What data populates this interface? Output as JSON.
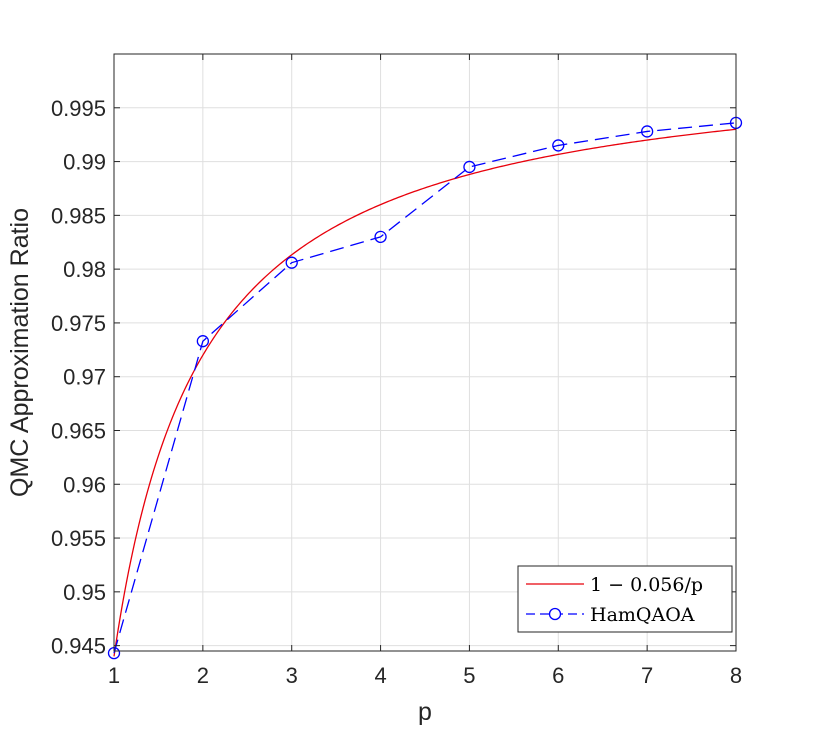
{
  "chart_data": {
    "type": "line",
    "xlabel": "p",
    "ylabel": "QMC Approximation Ratio",
    "xlim": [
      1,
      8
    ],
    "ylim": [
      0.9445,
      1.0
    ],
    "xticks": [
      1,
      2,
      3,
      4,
      5,
      6,
      7,
      8
    ],
    "yticks": [
      0.945,
      0.95,
      0.955,
      0.96,
      0.965,
      0.97,
      0.975,
      0.98,
      0.985,
      0.99,
      0.995
    ],
    "ytick_labels": [
      "0.945",
      "0.95",
      "0.955",
      "0.96",
      "0.965",
      "0.97",
      "0.975",
      "0.98",
      "0.985",
      "0.99",
      "0.995"
    ],
    "grid": true,
    "legend_position": "bottom-right",
    "series": [
      {
        "name": "1 − 0.056/p",
        "style": "solid",
        "color": "#e8000b",
        "formula": "1 - 0.056/p"
      },
      {
        "name": "HamQAOA",
        "style": "dashed",
        "marker": "circle",
        "color": "#0000ff",
        "x": [
          1,
          2,
          3,
          4,
          5,
          6,
          7,
          8
        ],
        "y": [
          0.9443,
          0.9733,
          0.9806,
          0.983,
          0.9895,
          0.9915,
          0.9928,
          0.9936
        ]
      }
    ]
  }
}
